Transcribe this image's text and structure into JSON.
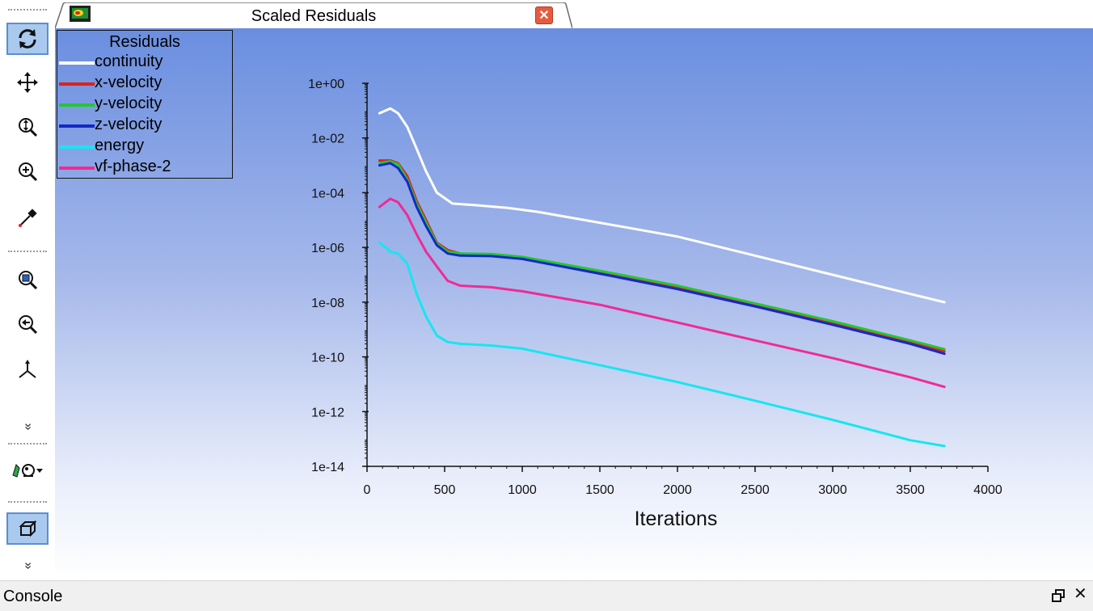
{
  "window": {
    "tab_title": "Scaled Residuals",
    "tab_icon": "fluent-app-icon",
    "close_icon": "close-icon"
  },
  "toolbar": {
    "tools": [
      {
        "name": "rotate-view",
        "icon": "rotate-icon",
        "active": true
      },
      {
        "name": "pan",
        "icon": "pan-icon",
        "active": false
      },
      {
        "name": "zoom-dynamic",
        "icon": "zoom-dynamic-icon",
        "active": false
      },
      {
        "name": "zoom-box",
        "icon": "zoom-in-icon",
        "active": false
      },
      {
        "name": "probe",
        "icon": "probe-icon",
        "active": false
      },
      {
        "name": "fit-to-window",
        "icon": "fit-view-icon",
        "active": false
      },
      {
        "name": "zoom-out",
        "icon": "zoom-out-icon",
        "active": false
      },
      {
        "name": "set-view-axes",
        "icon": "axes-icon",
        "active": false
      },
      {
        "name": "lighting",
        "icon": "lighting-icon",
        "active": false
      },
      {
        "name": "projection",
        "icon": "cube-icon",
        "active": true
      }
    ],
    "more_glyph": "»"
  },
  "console": {
    "title": "Console",
    "restore_icon": "restore-icon",
    "close_glyph": "✕"
  },
  "legend": {
    "title": "Residuals",
    "placement": "top-left"
  },
  "chart_data": {
    "type": "line",
    "title": "",
    "xlabel": "Iterations",
    "ylabel": "",
    "yscale": "log",
    "xlim": [
      0,
      4000
    ],
    "ylim": [
      1e-14,
      1
    ],
    "grid": false,
    "xticks": [
      0,
      500,
      1000,
      1500,
      2000,
      2500,
      3000,
      3500,
      4000
    ],
    "xtick_labels": [
      "0",
      "500",
      "1000",
      "1500",
      "2000",
      "2500",
      "3000",
      "3500",
      "4000"
    ],
    "yticks": [
      1,
      0.01,
      0.0001,
      1e-06,
      1e-08,
      1e-10,
      1e-12,
      1e-14
    ],
    "ytick_labels": [
      "1e+00",
      "1e-02",
      "1e-04",
      "1e-06",
      "1e-08",
      "1e-10",
      "1e-12",
      "1e-14"
    ],
    "background_colors": [
      "#6a8ee0",
      "#ffffff"
    ],
    "series": [
      {
        "name": "continuity",
        "color": "#ffffff",
        "x": [
          80,
          150,
          200,
          260,
          320,
          380,
          450,
          550,
          700,
          900,
          1100,
          1500,
          2000,
          2500,
          3000,
          3500,
          3720
        ],
        "y": [
          0.08,
          0.12,
          0.08,
          0.025,
          0.004,
          0.0006,
          0.0001,
          4e-05,
          3.5e-05,
          2.8e-05,
          2e-05,
          8e-06,
          2.5e-06,
          5e-07,
          1e-07,
          2e-08,
          1e-08
        ]
      },
      {
        "name": "x-velocity",
        "color": "#e0201c",
        "x": [
          80,
          150,
          200,
          260,
          320,
          380,
          450,
          520,
          600,
          800,
          1000,
          1500,
          2000,
          2500,
          3000,
          3500,
          3720
        ],
        "y": [
          0.0015,
          0.0015,
          0.0012,
          0.0004,
          5e-05,
          1e-05,
          1.5e-06,
          8e-07,
          6e-07,
          5.5e-07,
          4e-07,
          1.2e-07,
          3.5e-08,
          8e-09,
          1.8e-09,
          3.5e-10,
          1.6e-10
        ]
      },
      {
        "name": "y-velocity",
        "color": "#22c832",
        "x": [
          80,
          150,
          200,
          260,
          320,
          380,
          450,
          520,
          600,
          800,
          1000,
          1500,
          2000,
          2500,
          3000,
          3500,
          3720
        ],
        "y": [
          0.0012,
          0.0014,
          0.0011,
          0.0003,
          4e-05,
          8e-06,
          1.4e-06,
          7e-07,
          6e-07,
          5.8e-07,
          4.5e-07,
          1.4e-07,
          4e-08,
          9e-09,
          2e-09,
          4e-10,
          1.9e-10
        ]
      },
      {
        "name": "z-velocity",
        "color": "#1428c8",
        "x": [
          80,
          150,
          200,
          260,
          320,
          380,
          450,
          520,
          600,
          800,
          1000,
          1500,
          2000,
          2500,
          3000,
          3500,
          3720
        ],
        "y": [
          0.001,
          0.0012,
          0.0008,
          0.00025,
          3e-05,
          6e-06,
          1.2e-06,
          6e-07,
          5e-07,
          4.8e-07,
          3.8e-07,
          1.1e-07,
          3e-08,
          7e-09,
          1.5e-09,
          3e-10,
          1.3e-10
        ]
      },
      {
        "name": "energy",
        "color": "#16e6f0",
        "x": [
          80,
          120,
          150,
          200,
          260,
          320,
          380,
          450,
          520,
          600,
          800,
          1000,
          1500,
          2000,
          2500,
          3000,
          3500,
          3720
        ],
        "y": [
          1.5e-06,
          1e-06,
          7e-07,
          6e-07,
          2.5e-07,
          2e-08,
          3e-09,
          6e-10,
          3.5e-10,
          3e-10,
          2.6e-10,
          2e-10,
          5e-11,
          1.2e-11,
          2.5e-12,
          5e-13,
          9e-14,
          5.5e-14
        ]
      },
      {
        "name": "vf-phase-2",
        "color": "#f02a96",
        "x": [
          80,
          150,
          200,
          260,
          320,
          380,
          450,
          520,
          600,
          800,
          1000,
          1500,
          2000,
          2500,
          3000,
          3500,
          3720
        ],
        "y": [
          3e-05,
          6e-05,
          4.5e-05,
          1.5e-05,
          3e-06,
          7e-07,
          2e-07,
          6e-08,
          4e-08,
          3.5e-08,
          2.5e-08,
          8e-09,
          1.8e-09,
          4e-10,
          9e-11,
          1.8e-11,
          8e-12
        ]
      }
    ]
  }
}
